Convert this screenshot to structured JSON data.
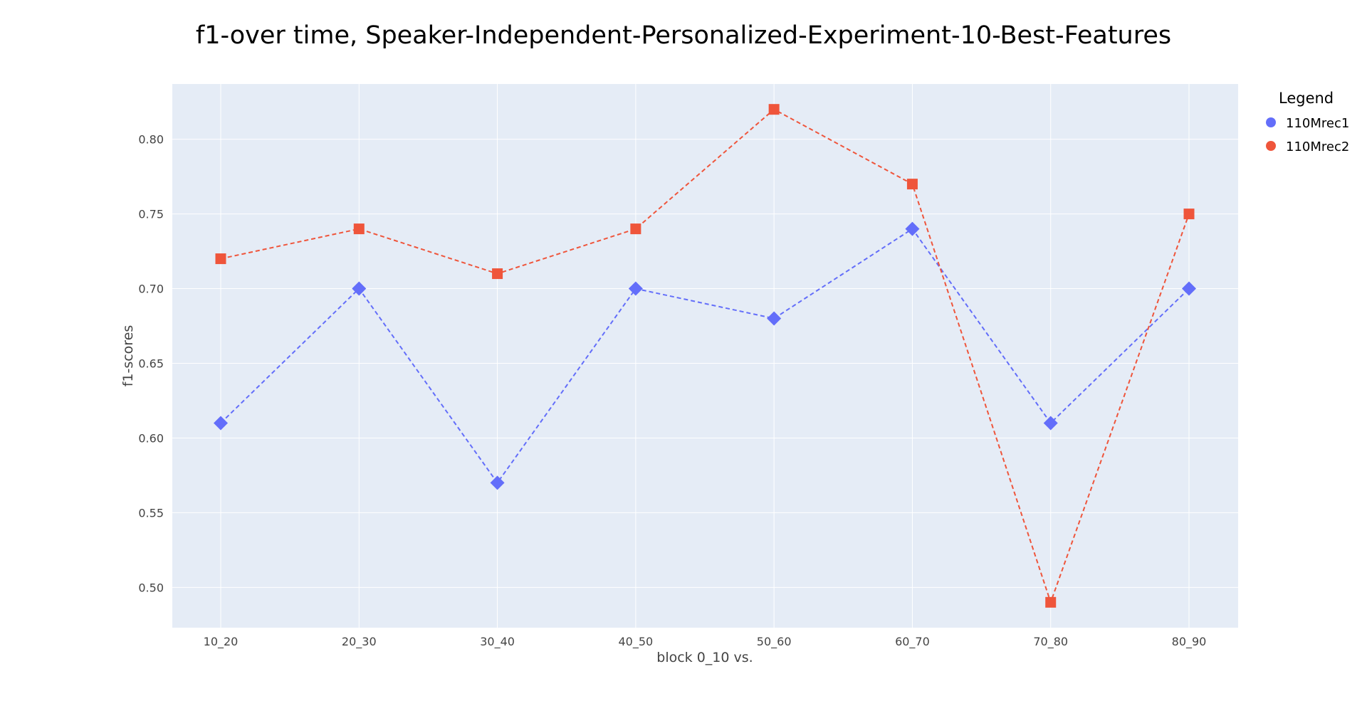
{
  "chart_data": {
    "type": "line",
    "title": "f1-over time, Speaker-Independent-Personalized-Experiment-10-Best-Features",
    "xlabel": "block 0_10 vs.",
    "ylabel": "f1-scores",
    "categories": [
      "10_20",
      "20_30",
      "30_40",
      "40_50",
      "50_60",
      "60_70",
      "70_80",
      "80_90"
    ],
    "ylim": [
      0.473,
      0.837
    ],
    "yticks": [
      "0.50",
      "0.55",
      "0.60",
      "0.65",
      "0.70",
      "0.75",
      "0.80"
    ],
    "grid": true,
    "legend": {
      "title": "Legend",
      "placement": "right"
    },
    "series": [
      {
        "name": "110Mrec1",
        "values": [
          0.61,
          0.7,
          0.57,
          0.7,
          0.68,
          0.74,
          0.61,
          0.7
        ],
        "color": "#636efa",
        "marker": "diamond",
        "line_style": "dashed"
      },
      {
        "name": "110Mrec2",
        "values": [
          0.72,
          0.74,
          0.71,
          0.74,
          0.82,
          0.77,
          0.49,
          0.75
        ],
        "color": "#ef553b",
        "marker": "square",
        "line_style": "dashed"
      }
    ],
    "plot_background": "#e5ecf6",
    "grid_color": "#ffffff"
  }
}
